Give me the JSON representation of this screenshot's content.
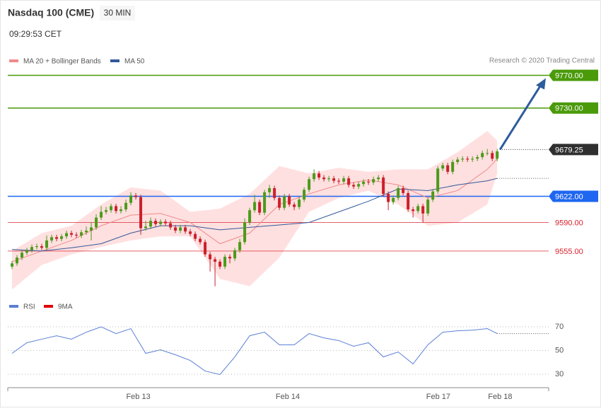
{
  "chart_data": [
    {
      "type": "candlestick",
      "title": "Nasdaq 100 (CME)",
      "timeframe": "30 MIN",
      "time": "09:29:53 CET",
      "credit": "Research © 2020 Trading Central",
      "ylim": [
        9503,
        9780
      ],
      "xlim": [
        -0.86,
        108.4
      ],
      "up_color": "#4c9a1a",
      "down_color": "#cc1f2b",
      "open": [
        9536,
        9540,
        9547,
        9553,
        9556,
        9560,
        9561,
        9559,
        9568,
        9572,
        9570,
        9573,
        9577,
        9575,
        9574,
        9578,
        9580,
        9584,
        9596,
        9603,
        9605,
        9610,
        9604,
        9606,
        9614,
        9623,
        9621,
        9583,
        9585,
        9592,
        9588,
        9591,
        9589,
        9584,
        9580,
        9584,
        9579,
        9576,
        9570,
        9566,
        9551,
        9545,
        9542,
        9536,
        9548,
        9546,
        9556,
        9566,
        9590,
        9605,
        9615,
        9602,
        9627,
        9632,
        9620,
        9608,
        9622,
        9612,
        9609,
        9618,
        9630,
        9643,
        9650,
        9645,
        9643,
        9644,
        9641,
        9640,
        9644,
        9636,
        9634,
        9637,
        9640,
        9639,
        9643,
        9645,
        9625,
        9615,
        9620,
        9632,
        9626,
        9606,
        9604,
        9610,
        9601,
        9618,
        9628,
        9656,
        9660,
        9652,
        9664,
        9667,
        9668,
        9667,
        9668,
        9670,
        9675,
        9675,
        9668
      ],
      "high": [
        9543,
        9550,
        9556,
        9559,
        9563,
        9564,
        9564,
        9574,
        9575,
        9575,
        9576,
        9580,
        9580,
        9578,
        9581,
        9585,
        9590,
        9600,
        9610,
        9609,
        9613,
        9613,
        9610,
        9618,
        9627,
        9626,
        9624,
        9592,
        9596,
        9595,
        9594,
        9594,
        9592,
        9587,
        9587,
        9587,
        9582,
        9579,
        9573,
        9569,
        9554,
        9548,
        9545,
        9551,
        9551,
        9559,
        9570,
        9595,
        9608,
        9624,
        9618,
        9630,
        9636,
        9635,
        9623,
        9625,
        9625,
        9615,
        9621,
        9633,
        9646,
        9655,
        9653,
        9648,
        9647,
        9647,
        9644,
        9647,
        9647,
        9639,
        9640,
        9643,
        9643,
        9646,
        9648,
        9648,
        9628,
        9623,
        9635,
        9635,
        9629,
        9609,
        9613,
        9613,
        9621,
        9631,
        9659,
        9663,
        9663,
        9667,
        9670,
        9671,
        9671,
        9671,
        9673,
        9678,
        9680,
        9678,
        9680
      ],
      "low": [
        9533,
        9537,
        9544,
        9550,
        9553,
        9557,
        9556,
        9556,
        9565,
        9567,
        9567,
        9570,
        9572,
        9571,
        9571,
        9575,
        9568,
        9581,
        9593,
        9600,
        9602,
        9601,
        9601,
        9603,
        9611,
        9618,
        9575,
        9580,
        9582,
        9585,
        9585,
        9586,
        9581,
        9577,
        9577,
        9576,
        9573,
        9567,
        9563,
        9548,
        9530,
        9512,
        9533,
        9533,
        9540,
        9543,
        9553,
        9563,
        9587,
        9602,
        9599,
        9599,
        9620,
        9617,
        9605,
        9605,
        9609,
        9605,
        9606,
        9615,
        9627,
        9640,
        9642,
        9640,
        9640,
        9638,
        9637,
        9637,
        9633,
        9631,
        9631,
        9634,
        9636,
        9636,
        9640,
        9622,
        9605,
        9612,
        9617,
        9623,
        9603,
        9596,
        9601,
        9590,
        9598,
        9615,
        9625,
        9653,
        9649,
        9649,
        9661,
        9664,
        9664,
        9664,
        9665,
        9667,
        9672,
        9665,
        9665
      ],
      "close": [
        9540,
        9547,
        9553,
        9556,
        9560,
        9561,
        9559,
        9568,
        9572,
        9570,
        9573,
        9577,
        9575,
        9574,
        9578,
        9580,
        9584,
        9596,
        9603,
        9605,
        9610,
        9604,
        9606,
        9614,
        9623,
        9621,
        9583,
        9585,
        9592,
        9588,
        9591,
        9589,
        9584,
        9580,
        9584,
        9579,
        9576,
        9570,
        9566,
        9551,
        9545,
        9542,
        9536,
        9548,
        9546,
        9556,
        9566,
        9590,
        9605,
        9615,
        9602,
        9627,
        9632,
        9620,
        9608,
        9622,
        9612,
        9609,
        9618,
        9630,
        9643,
        9650,
        9645,
        9643,
        9644,
        9641,
        9640,
        9644,
        9636,
        9634,
        9637,
        9640,
        9639,
        9643,
        9645,
        9625,
        9615,
        9620,
        9632,
        9626,
        9606,
        9604,
        9610,
        9601,
        9618,
        9628,
        9656,
        9660,
        9652,
        9664,
        9667,
        9668,
        9667,
        9668,
        9670,
        9675,
        9675,
        9668,
        9677
      ],
      "overlays": [
        {
          "name": "MA 20 + Bollinger Bands",
          "color": "#f08a8a",
          "band_color": "#ffe0e0",
          "x": [
            0,
            6,
            12,
            18,
            24,
            30,
            36,
            42,
            48,
            54,
            60,
            66,
            72,
            78,
            84,
            90,
            96,
            98
          ],
          "values": [
            9542,
            9555,
            9568,
            9586,
            9599,
            9601,
            9590,
            9564,
            9577,
            9612,
            9625,
            9636,
            9642,
            9636,
            9620,
            9629,
            9655,
            9668
          ],
          "upper": [
            9555,
            9577,
            9586,
            9612,
            9633,
            9629,
            9603,
            9607,
            9625,
            9659,
            9650,
            9657,
            9652,
            9655,
            9655,
            9676,
            9702,
            9690
          ],
          "lower": [
            9508,
            9538,
            9551,
            9560,
            9568,
            9573,
            9573,
            9521,
            9512,
            9547,
            9603,
            9620,
            9629,
            9612,
            9586,
            9590,
            9612,
            9650
          ]
        },
        {
          "name": "MA 50",
          "color": "#33589a",
          "x": [
            0,
            6,
            12,
            18,
            24,
            30,
            36,
            42,
            48,
            54,
            60,
            66,
            72,
            78,
            84,
            90,
            96,
            98
          ],
          "values": [
            9557,
            9555,
            9559,
            9564,
            9577,
            9586,
            9586,
            9581,
            9584,
            9587,
            9590,
            9603,
            9616,
            9631,
            9629,
            9636,
            9641,
            9644
          ]
        }
      ],
      "levels": [
        {
          "value": 9770,
          "label": "9770.00",
          "color": "#4a9a0a",
          "tag": true
        },
        {
          "value": 9730,
          "label": "9730.00",
          "color": "#4a9a0a",
          "tag": true
        },
        {
          "value": 9622,
          "label": "9622.00",
          "color": "#1f66f0",
          "tag": true
        },
        {
          "value": 9590,
          "label": "9590.00",
          "color": "#d81f2b",
          "tag": false
        },
        {
          "value": 9555,
          "label": "9555.00",
          "color": "#d81f2b",
          "tag": false
        }
      ],
      "last": {
        "value": 9679.25,
        "label": "9679.25",
        "color": "#2f2f2f"
      },
      "xticks": [
        {
          "value": 25.5,
          "label": "Feb 13"
        },
        {
          "value": 55.7,
          "label": "Feb 14"
        },
        {
          "value": 86.1,
          "label": "Feb 17"
        },
        {
          "value": 98.6,
          "label": "Feb 18"
        }
      ]
    },
    {
      "type": "line",
      "ylim": [
        23.4,
        77.2
      ],
      "xlim": [
        -0.86,
        108.4
      ],
      "yticks": [
        30,
        50,
        70
      ],
      "series": [
        {
          "name": "RSI",
          "color": "#5b7fd6",
          "x": [
            0,
            3,
            6,
            9,
            12,
            15,
            18,
            21,
            24,
            27,
            30,
            33,
            36,
            39,
            42,
            45,
            48,
            51,
            54,
            57,
            60,
            63,
            66,
            69,
            72,
            75,
            78,
            81,
            84,
            87,
            90,
            93,
            96,
            98
          ],
          "values": [
            47.6,
            56.6,
            59.6,
            62.5,
            59.6,
            65.5,
            70,
            64.3,
            68.5,
            47.6,
            50.6,
            46.4,
            41.6,
            32.7,
            29.7,
            44.6,
            62.5,
            65.5,
            54.8,
            54.8,
            64.3,
            60.7,
            58.4,
            53.6,
            56.6,
            44.6,
            48.8,
            38.7,
            54.8,
            65.5,
            66.7,
            67.2,
            68.5,
            64.3
          ]
        },
        {
          "name": "9MA",
          "color": "#e00000",
          "x": [],
          "values": []
        }
      ]
    }
  ]
}
